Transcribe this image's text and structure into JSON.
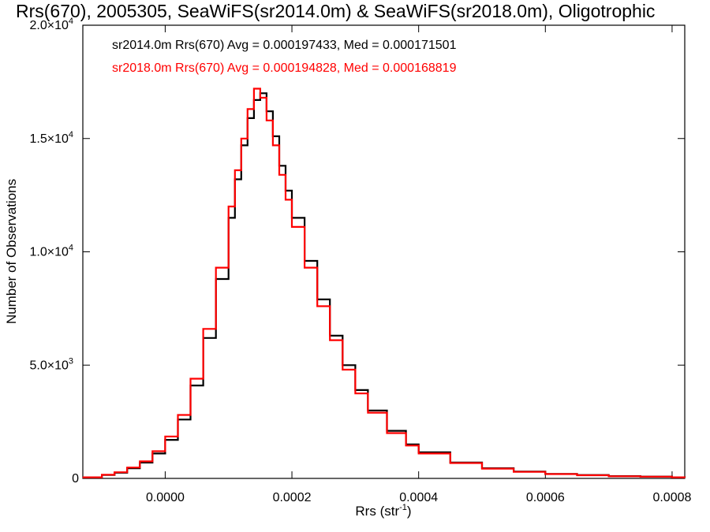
{
  "chart_data": {
    "type": "line",
    "title": "Rrs(670), 2005305, SeaWiFS(sr2014.0m) & SeaWiFS(sr2018.0m), Oligotrophic",
    "xlabel": "Rrs (str",
    "xlabel_sup": "-1",
    "xlabel_end": ")",
    "ylabel": "Number of Observations",
    "xlim": [
      -0.00013,
      0.00082
    ],
    "ylim": [
      0,
      20000
    ],
    "x_ticks": [
      {
        "value": 0.0,
        "label": "0.0000"
      },
      {
        "value": 0.0002,
        "label": "0.0002"
      },
      {
        "value": 0.0004,
        "label": "0.0004"
      },
      {
        "value": 0.0006,
        "label": "0.0006"
      },
      {
        "value": 0.0008,
        "label": "0.0008"
      }
    ],
    "y_ticks": [
      {
        "value": 0,
        "mant": "0",
        "exp": ""
      },
      {
        "value": 5000,
        "mant": "5.0×10",
        "exp": "3"
      },
      {
        "value": 10000,
        "mant": "1.0×10",
        "exp": "4"
      },
      {
        "value": 15000,
        "mant": "1.5×10",
        "exp": "4"
      },
      {
        "value": 20000,
        "mant": "2.0×10",
        "exp": "4"
      }
    ],
    "legend": [
      {
        "text": "sr2014.0m Rrs(670) Avg = 0.000197433, Med = 0.000171501",
        "color": "#000000"
      },
      {
        "text": "sr2018.0m Rrs(670) Avg = 0.000194828, Med = 0.000168819",
        "color": "#ff0000"
      }
    ],
    "grid": false,
    "series": [
      {
        "name": "sr2014.0m",
        "color": "#000000",
        "x": [
          -0.00013,
          -0.0001,
          -8e-05,
          -6e-05,
          -4e-05,
          -2e-05,
          0.0,
          2e-05,
          4e-05,
          6e-05,
          8e-05,
          0.0001,
          0.00011,
          0.00012,
          0.00013,
          0.00014,
          0.00015,
          0.00016,
          0.00017,
          0.00018,
          0.00019,
          0.0002,
          0.00022,
          0.00024,
          0.00026,
          0.00028,
          0.0003,
          0.00032,
          0.00035,
          0.00038,
          0.0004,
          0.00045,
          0.0005,
          0.00055,
          0.0006,
          0.00065,
          0.0007,
          0.00075,
          0.0008,
          0.00082
        ],
        "y": [
          50,
          150,
          250,
          450,
          700,
          1100,
          1700,
          2600,
          4100,
          6200,
          8800,
          11500,
          13200,
          14700,
          15900,
          16700,
          17000,
          16200,
          15100,
          13800,
          12700,
          11500,
          9600,
          7900,
          6300,
          5000,
          3900,
          3000,
          2100,
          1500,
          1150,
          700,
          450,
          300,
          200,
          150,
          100,
          80,
          50,
          40
        ]
      },
      {
        "name": "sr2018.0m",
        "color": "#ff0000",
        "x": [
          -0.00013,
          -0.0001,
          -8e-05,
          -6e-05,
          -4e-05,
          -2e-05,
          0.0,
          2e-05,
          4e-05,
          6e-05,
          8e-05,
          0.0001,
          0.00011,
          0.00012,
          0.00013,
          0.00014,
          0.00015,
          0.00016,
          0.00017,
          0.00018,
          0.00019,
          0.0002,
          0.00022,
          0.00024,
          0.00026,
          0.00028,
          0.0003,
          0.00032,
          0.00035,
          0.00038,
          0.0004,
          0.00045,
          0.0005,
          0.00055,
          0.0006,
          0.00065,
          0.0007,
          0.00075,
          0.0008,
          0.00082
        ],
        "y": [
          50,
          160,
          270,
          480,
          750,
          1200,
          1850,
          2800,
          4400,
          6600,
          9300,
          12000,
          13600,
          15000,
          16300,
          17200,
          16800,
          15800,
          14700,
          13400,
          12300,
          11100,
          9300,
          7600,
          6100,
          4800,
          3750,
          2900,
          2000,
          1450,
          1100,
          680,
          430,
          290,
          190,
          140,
          95,
          75,
          50,
          40
        ]
      }
    ]
  }
}
